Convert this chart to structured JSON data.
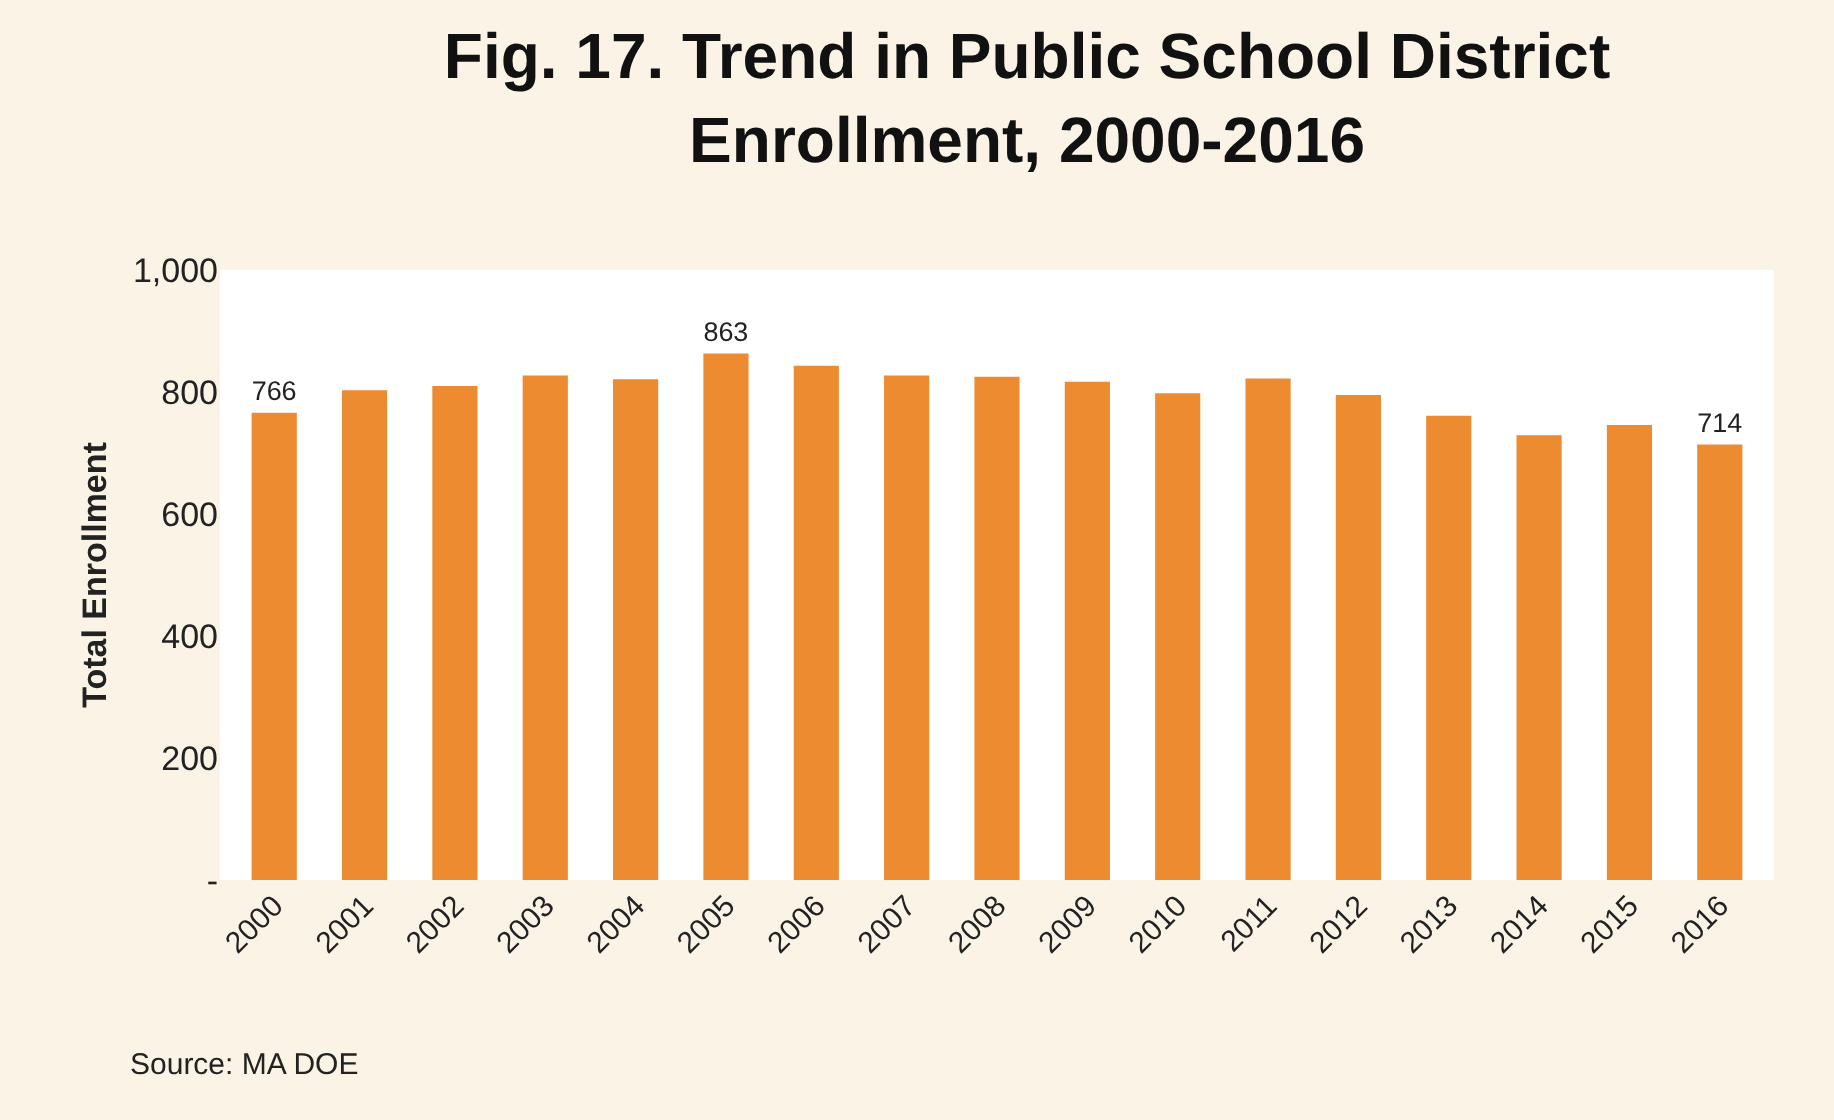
{
  "chart_data": {
    "type": "bar",
    "title": "Fig. 17. Trend in Public School District Enrollment, 2000-2016",
    "ylabel": "Total Enrollment",
    "categories": [
      "2000",
      "2001",
      "2002",
      "2003",
      "2004",
      "2005",
      "2006",
      "2007",
      "2008",
      "2009",
      "2010",
      "2011",
      "2012",
      "2013",
      "2014",
      "2015",
      "2016"
    ],
    "values": [
      766,
      803,
      810,
      827,
      821,
      863,
      843,
      827,
      825,
      817,
      798,
      822,
      795,
      761,
      729,
      746,
      714
    ],
    "value_labels": [
      "766",
      null,
      null,
      null,
      null,
      "863",
      null,
      null,
      null,
      null,
      null,
      null,
      null,
      null,
      null,
      null,
      "714"
    ],
    "color": "#ec8b30",
    "ylim": [
      0,
      1000
    ],
    "yticks": [
      {
        "value": 0,
        "label": "-"
      },
      {
        "value": 200,
        "label": "200"
      },
      {
        "value": 400,
        "label": "400"
      },
      {
        "value": 600,
        "label": "600"
      },
      {
        "value": 800,
        "label": "800"
      },
      {
        "value": 1000,
        "label": "1,000"
      }
    ],
    "grid": false,
    "legend": false,
    "annotations": [
      "Source: MA DOE"
    ]
  }
}
